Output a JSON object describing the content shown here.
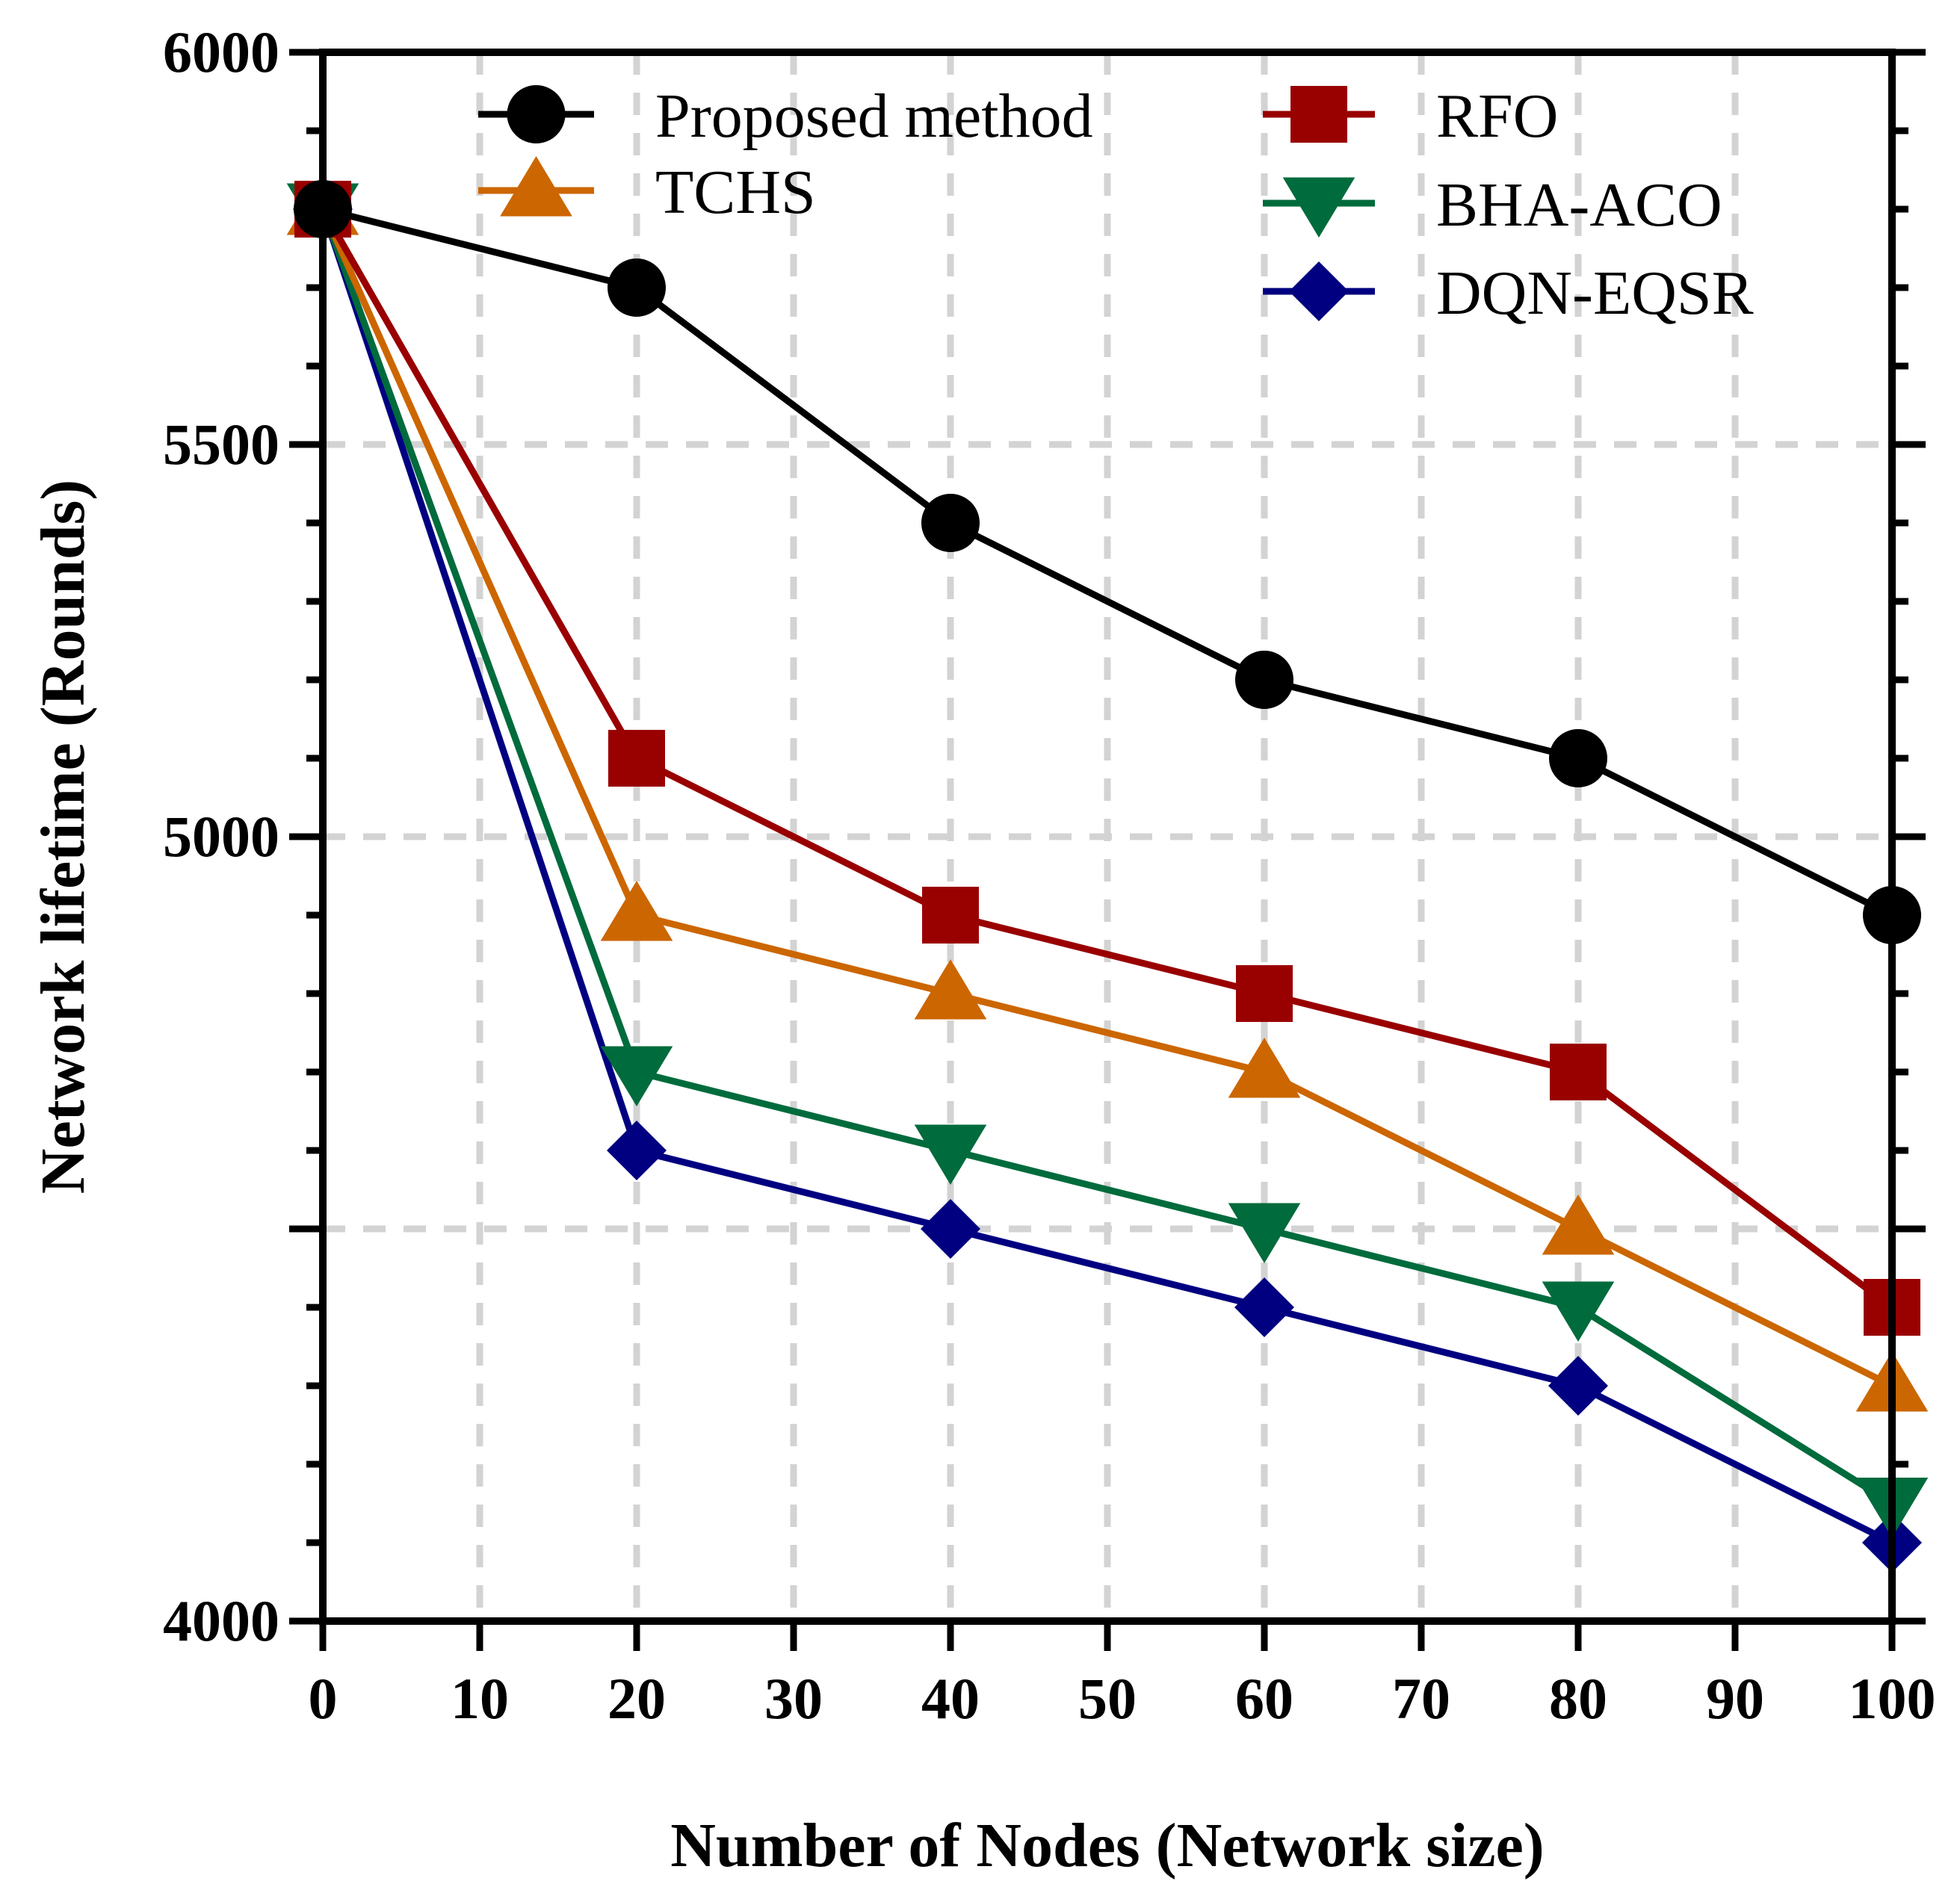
{
  "chart_data": {
    "type": "line",
    "title": "",
    "xlabel": "Number of Nodes (Network size)",
    "ylabel": "Network lifetime (Rounds)",
    "xlim": [
      0,
      100
    ],
    "ylim": [
      4000,
      6000
    ],
    "x_ticks": [
      0,
      10,
      20,
      30,
      40,
      50,
      60,
      70,
      80,
      90,
      100
    ],
    "x_tick_labels": [
      "0",
      "10",
      "20",
      "30",
      "40",
      "50",
      "60",
      "70",
      "80",
      "90",
      "100"
    ],
    "y_ticks": [
      4000,
      5000,
      5500,
      6000
    ],
    "y_tick_labels": [
      "4000",
      "5000",
      "5500",
      "6000"
    ],
    "y_grid_ticks": [
      4500,
      5000,
      5500
    ],
    "x_grid_ticks": [
      10,
      20,
      30,
      40,
      50,
      60,
      70,
      80,
      90
    ],
    "y_minor_step": 100,
    "x": [
      0,
      20,
      40,
      60,
      80,
      100
    ],
    "grid": true,
    "legend_position": "top",
    "series": [
      {
        "name": "Proposed method",
        "color": "#000000",
        "marker": "circle",
        "values": [
          5800,
          5700,
          5400,
          5200,
          5100,
          4900
        ]
      },
      {
        "name": "RFO",
        "color": "#990000",
        "marker": "square",
        "values": [
          5800,
          5100,
          4900,
          4800,
          4700,
          4400
        ]
      },
      {
        "name": "TCHS",
        "color": "#CC6600",
        "marker": "triangle-up",
        "values": [
          5800,
          4900,
          4800,
          4700,
          4500,
          4300
        ]
      },
      {
        "name": "BHA-ACO",
        "color": "#006B3C",
        "marker": "triangle-down",
        "values": [
          5800,
          4700,
          4600,
          4500,
          4400,
          4150
        ]
      },
      {
        "name": "DQN-EQSR",
        "color": "#000080",
        "marker": "diamond",
        "values": [
          5800,
          4600,
          4500,
          4400,
          4300,
          4100
        ]
      }
    ]
  }
}
